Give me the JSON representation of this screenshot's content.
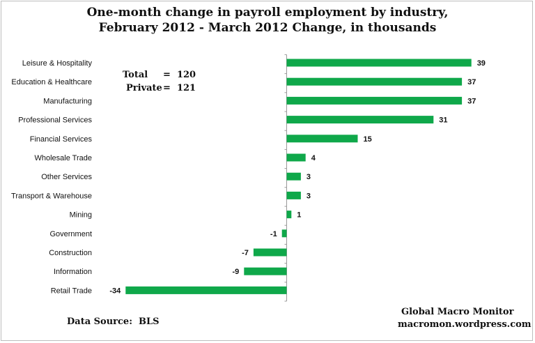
{
  "chart_data": {
    "type": "bar",
    "orientation": "horizontal",
    "title_line1": "One-month change in payroll employment by industry,",
    "title_line2": "February 2012 - March 2012  Change, in thousands",
    "categories": [
      "Leisure & Hospitality",
      "Education & Healthcare",
      "Manufacturing",
      "Professional Services",
      "Financial Services",
      "Wholesale Trade",
      "Other Services",
      "Transport & Warehouse",
      "Mining",
      "Government",
      "Construction",
      "Information",
      "Retail Trade"
    ],
    "values": [
      39,
      37,
      37,
      31,
      15,
      4,
      3,
      3,
      1,
      -1,
      -7,
      -9,
      -34
    ],
    "value_labels": [
      "39",
      "37",
      "37",
      "31",
      "15",
      "4",
      "3",
      "3",
      "1",
      "-1",
      "-7",
      "-9",
      "-34"
    ],
    "bar_color": "#0fa84a",
    "xlim": [
      -39,
      43
    ],
    "grid": false,
    "legend": "none"
  },
  "annotations": {
    "total_label": "Total",
    "total_value": "=  120",
    "private_label": "Private",
    "private_value": "=  121",
    "source": "Data Source:  BLS",
    "credit_line1": "Global Macro Monitor",
    "credit_line2": "macromon.wordpress.com"
  }
}
